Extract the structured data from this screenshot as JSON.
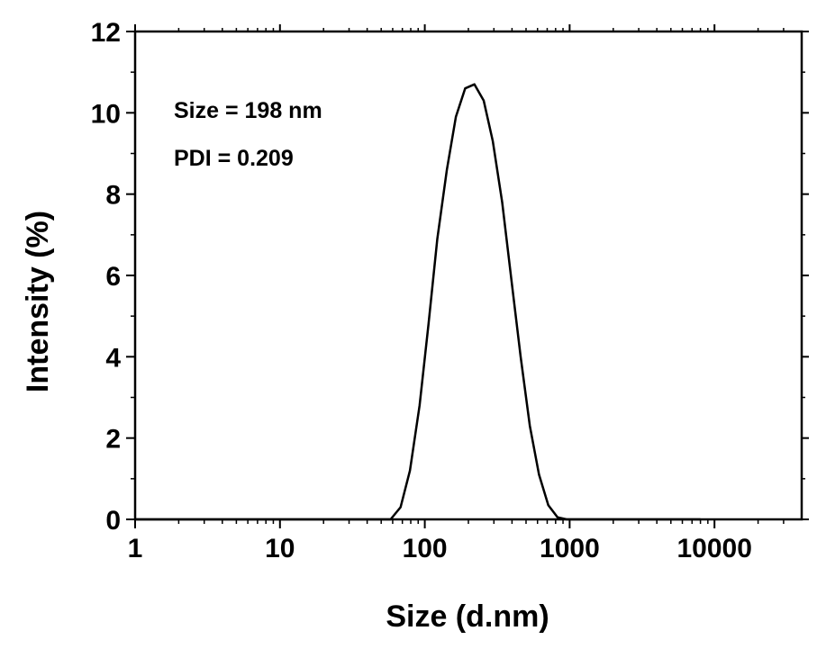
{
  "chart_data": {
    "type": "line",
    "title": "",
    "xlabel": "Size (d.nm)",
    "ylabel": "Intensity (%)",
    "xscale": "log",
    "xlim": [
      1,
      40000
    ],
    "ylim": [
      0,
      12
    ],
    "grid": false,
    "legend": "none",
    "x_ticks": [
      1,
      10,
      100,
      1000,
      10000
    ],
    "x_tick_labels": [
      "1",
      "10",
      "100",
      "1000",
      "10000"
    ],
    "y_ticks": [
      0,
      2,
      4,
      6,
      8,
      10,
      12
    ],
    "y_tick_labels": [
      "0",
      "2",
      "4",
      "6",
      "8",
      "10",
      "12"
    ],
    "annotations": [
      "Size = 198 nm",
      "PDI = 0.209"
    ],
    "series": [
      {
        "x": [
          1,
          58,
          68,
          79,
          92,
          106,
          122,
          142,
          164,
          190,
          220,
          255,
          295,
          342,
          396,
          459,
          531,
          615,
          712,
          825,
          955,
          1100,
          1500,
          3000,
          8000
        ],
        "y": [
          0,
          0,
          0.3,
          1.2,
          2.8,
          4.8,
          6.9,
          8.6,
          9.9,
          10.6,
          10.7,
          10.3,
          9.3,
          7.8,
          5.9,
          4.0,
          2.3,
          1.1,
          0.35,
          0.05,
          0,
          0,
          0,
          0,
          0
        ],
        "color": "#000000"
      }
    ]
  }
}
